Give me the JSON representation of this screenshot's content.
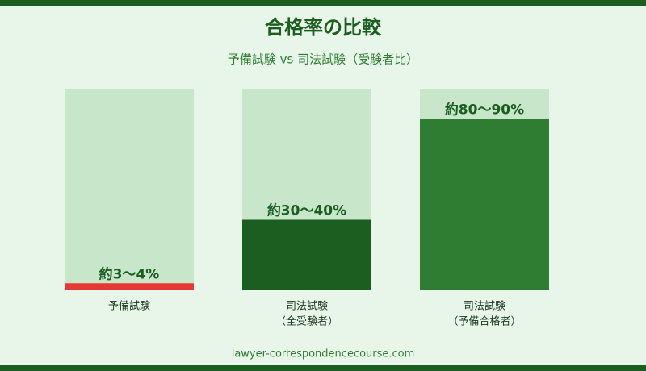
{
  "chart_data": {
    "type": "bar",
    "title": "合格率の比較",
    "subtitle": "予備試験 vs 司法試験（受験者比）",
    "categories": [
      "予備試験",
      "司法試験",
      "司法試験"
    ],
    "category_notes": [
      null,
      "（全受験者）",
      "（予備合格者）"
    ],
    "values": [
      3.5,
      35,
      85
    ],
    "value_labels": [
      "約3〜4%",
      "約30〜40%",
      "約80〜90%"
    ],
    "colors": [
      "#e53935",
      "#1b5e20",
      "#2e7d32"
    ],
    "ylim": [
      0,
      100
    ],
    "footer": "lawyer-correspondencecourse.com"
  }
}
